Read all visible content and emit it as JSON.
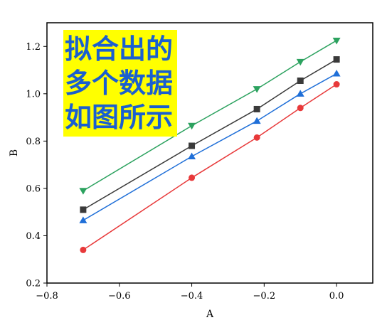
{
  "chart_data": {
    "type": "line",
    "xlabel": "A",
    "ylabel": "B",
    "xlim": [
      -0.8,
      0.1
    ],
    "ylim": [
      0.2,
      1.3
    ],
    "xticks": [
      -0.8,
      -0.6,
      -0.4,
      -0.2,
      0.0
    ],
    "xtick_labels": [
      "−0.8",
      "−0.6",
      "−0.4",
      "−0.2",
      "0.0"
    ],
    "yticks": [
      0.2,
      0.4,
      0.6,
      0.8,
      1.0,
      1.2
    ],
    "ytick_labels": [
      "0.2",
      "0.4",
      "0.6",
      "0.8",
      "1.0",
      "1.2"
    ],
    "grid": false,
    "series": [
      {
        "marker": "triangle-down",
        "color": "#2ca25f",
        "x": [
          -0.7,
          -0.4,
          -0.22,
          -0.1,
          0.0
        ],
        "y": [
          0.59,
          0.865,
          1.02,
          1.135,
          1.225
        ]
      },
      {
        "marker": "square",
        "color": "#3a3a3a",
        "x": [
          -0.7,
          -0.4,
          -0.22,
          -0.1,
          0.0
        ],
        "y": [
          0.51,
          0.78,
          0.935,
          1.055,
          1.145
        ]
      },
      {
        "marker": "triangle-up",
        "color": "#1f6fd8",
        "x": [
          -0.7,
          -0.4,
          -0.22,
          -0.1,
          0.0
        ],
        "y": [
          0.465,
          0.735,
          0.885,
          1.0,
          1.085
        ]
      },
      {
        "marker": "circle",
        "color": "#e8393a",
        "x": [
          -0.7,
          -0.4,
          -0.22,
          -0.1,
          0.0
        ],
        "y": [
          0.34,
          0.645,
          0.815,
          0.94,
          1.04
        ]
      }
    ],
    "annotation_lines": [
      "拟合出的",
      "多个数据",
      "如图所示"
    ],
    "annotation_background": "#ffff00",
    "annotation_color": "#1a5fd0"
  }
}
